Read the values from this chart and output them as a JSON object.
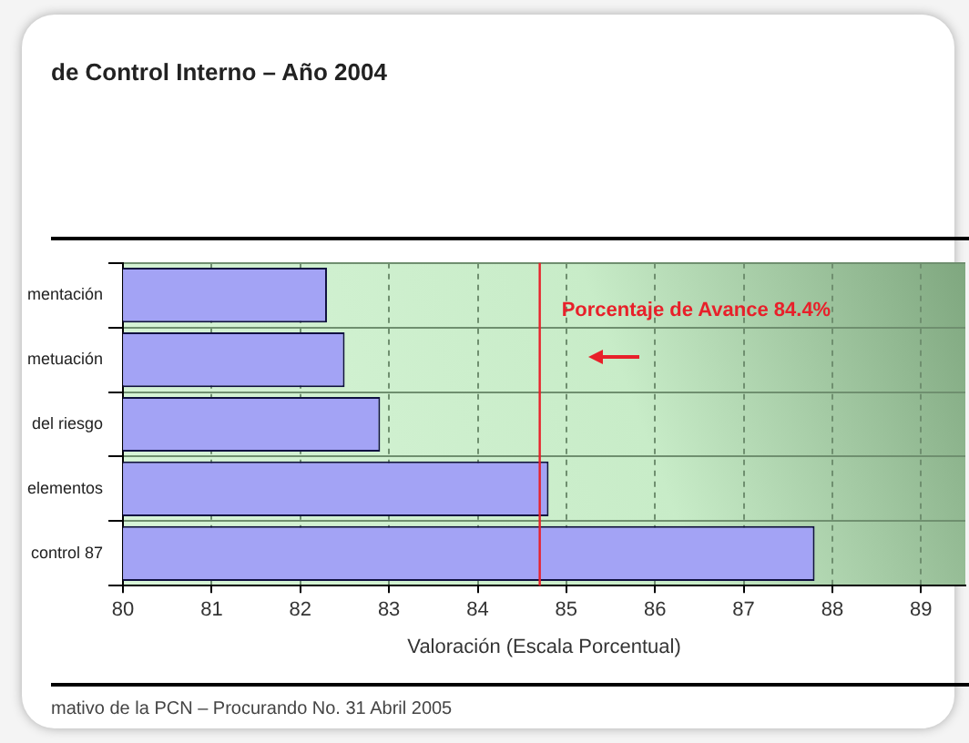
{
  "chart_data": {
    "type": "bar",
    "orientation": "horizontal",
    "title": "de Control Interno – Año 2004",
    "xlabel": "Valoración (Escala Porcentual)",
    "categories": [
      "mentación",
      "metuación",
      "del riesgo",
      "elementos",
      "control 87"
    ],
    "values": [
      82.3,
      82.5,
      82.9,
      84.8,
      87.8
    ],
    "color": "#a3a3f5",
    "xlim": [
      80,
      89.5
    ],
    "xticks": [
      80,
      81,
      82,
      83,
      84,
      85,
      86,
      87,
      88,
      89
    ],
    "grid": true,
    "legend": false,
    "ref_lines": [
      {
        "axis": "x",
        "value": 84.7,
        "label": "Porcentaje de Avance 84.4%",
        "color": "#e8202a"
      }
    ],
    "annotations": [
      "mativo de la PCN – Procurando No. 31 Abril 2005"
    ]
  }
}
